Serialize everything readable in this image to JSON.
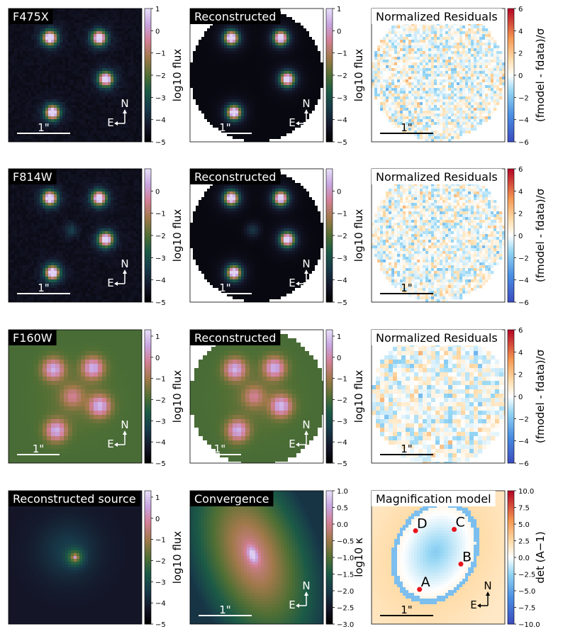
{
  "figure": {
    "panels": [
      {
        "id": "f475x",
        "title": "F475X",
        "kind": "image",
        "colormap": "cubehelix",
        "sources": "quad",
        "noisy": true,
        "style": "optical",
        "scalebar": "1\"",
        "compass": {
          "north": "N",
          "east": "E"
        },
        "circular": false
      },
      {
        "id": "f475x-recon",
        "title": "Reconstructed",
        "kind": "image",
        "colormap": "cubehelix",
        "sources": "quad",
        "noisy": false,
        "style": "optical",
        "scalebar": "1\"",
        "compass": {
          "north": "N",
          "east": "E"
        },
        "circular": true
      },
      {
        "id": "f475x-resid",
        "title": "Normalized Residuals",
        "kind": "residual",
        "colormap": "coolwarm",
        "scalebar": "1\"",
        "pixel": 4,
        "circular": true
      },
      {
        "id": "f814w",
        "title": "F814W",
        "kind": "image",
        "colormap": "cubehelix",
        "sources": "quad",
        "noisy": true,
        "style": "optical",
        "scalebar": "1\"",
        "compass": {
          "north": "N",
          "east": "E"
        },
        "circular": false
      },
      {
        "id": "f814w-recon",
        "title": "Reconstructed",
        "kind": "image",
        "colormap": "cubehelix",
        "sources": "quad",
        "noisy": false,
        "style": "optical",
        "scalebar": "1\"",
        "compass": {
          "north": "N",
          "east": "E"
        },
        "circular": true
      },
      {
        "id": "f814w-resid",
        "title": "Normalized Residuals",
        "kind": "residual",
        "colormap": "coolwarm",
        "scalebar": "1\"",
        "pixel": 4,
        "circular": true
      },
      {
        "id": "f160w",
        "title": "F160W",
        "kind": "image",
        "colormap": "cubehelix",
        "sources": "quad",
        "noisy": false,
        "style": "infrared",
        "scalebar": "1\"",
        "compass": {
          "north": "N",
          "east": "E"
        },
        "circular": false
      },
      {
        "id": "f160w-recon",
        "title": "Reconstructed",
        "kind": "image",
        "colormap": "cubehelix",
        "sources": "quad",
        "noisy": false,
        "style": "infrared",
        "scalebar": "1\"",
        "compass": {
          "north": "N",
          "east": "E"
        },
        "circular": true
      },
      {
        "id": "f160w-resid",
        "title": "Normalized Residuals",
        "kind": "residual",
        "colormap": "coolwarm",
        "scalebar": "1\"",
        "pixel": 6,
        "circular": true
      },
      {
        "id": "source",
        "title": "Reconstructed source",
        "kind": "source",
        "colormap": "cubehelix",
        "scalebar": "",
        "circular": false
      },
      {
        "id": "convergence",
        "title": "Convergence",
        "kind": "convergence",
        "colormap": "cubehelix",
        "scalebar": "1\"",
        "compass": {
          "north": "N",
          "east": "E"
        },
        "circular": false
      },
      {
        "id": "magnification",
        "title": "Magnification model",
        "kind": "magnification",
        "colormap": "coolwarm",
        "scalebar": "1\"",
        "compass": {
          "north": "N",
          "east": "E"
        },
        "circular": false,
        "image_labels": [
          "A",
          "B",
          "C",
          "D"
        ]
      }
    ],
    "colorbars": [
      {
        "id": "cb-f475x",
        "label": "log10 flux",
        "ticks": [
          "1",
          "0",
          "−1",
          "−2",
          "−3",
          "−4",
          "−5"
        ],
        "range": [
          -5,
          1
        ],
        "colormap": "cubehelix"
      },
      {
        "id": "cb-f475x-recon",
        "label": "log10 flux",
        "ticks": [
          "1",
          "0",
          "−1",
          "−2",
          "−3",
          "−4",
          "−5"
        ],
        "range": [
          -5,
          1
        ],
        "colormap": "cubehelix"
      },
      {
        "id": "cb-f475x-resid",
        "label": "(fmodel - fdata)/σ",
        "ticks": [
          "6",
          "4",
          "2",
          "0",
          "−2",
          "−4",
          "−6"
        ],
        "range": [
          -6,
          6
        ],
        "colormap": "coolwarm"
      },
      {
        "id": "cb-f814w",
        "label": "log10 flux",
        "ticks": [
          "0",
          "−1",
          "−2",
          "−3",
          "−4",
          "−5"
        ],
        "range": [
          -5,
          1
        ],
        "colormap": "cubehelix"
      },
      {
        "id": "cb-f814w-recon",
        "label": "log10 flux",
        "ticks": [
          "0",
          "−1",
          "−2",
          "−3",
          "−4",
          "−5"
        ],
        "range": [
          -5,
          1
        ],
        "colormap": "cubehelix"
      },
      {
        "id": "cb-f814w-resid",
        "label": "(fmodel - fdata)/σ",
        "ticks": [
          "6",
          "4",
          "2",
          "0",
          "−2",
          "−4",
          "−6"
        ],
        "range": [
          -6,
          6
        ],
        "colormap": "coolwarm"
      },
      {
        "id": "cb-f160w",
        "label": "log10 flux",
        "ticks": [
          "1",
          "0",
          "−1",
          "−2",
          "−3",
          "−4",
          "−5"
        ],
        "range": [
          -5,
          1.3
        ],
        "colormap": "cubehelix"
      },
      {
        "id": "cb-f160w-recon",
        "label": "log10 flux",
        "ticks": [
          "1",
          "0",
          "−1",
          "−2",
          "−3",
          "−4",
          "−5"
        ],
        "range": [
          -5,
          1.3
        ],
        "colormap": "cubehelix"
      },
      {
        "id": "cb-f160w-resid",
        "label": "(fmodel - fdata)/σ",
        "ticks": [
          "6",
          "4",
          "2",
          "0",
          "−2",
          "−4",
          "−6"
        ],
        "range": [
          -6,
          6
        ],
        "colormap": "coolwarm"
      },
      {
        "id": "cb-source",
        "label": "log10 flux",
        "ticks": [
          "1",
          "0",
          "−1",
          "−2",
          "−3",
          "−4",
          "−5"
        ],
        "range": [
          -5,
          1.3
        ],
        "colormap": "cubehelix"
      },
      {
        "id": "cb-convergence",
        "label": "log10 κ",
        "ticks": [
          "1.0",
          "0.5",
          "0.0",
          "−0.5",
          "−1.0",
          "−1.5",
          "−2.0",
          "−2.5",
          "−3.0"
        ],
        "range": [
          -3,
          1
        ],
        "colormap": "cubehelix"
      },
      {
        "id": "cb-magnification",
        "label": "det (A−1)",
        "ticks": [
          "10.0",
          "7.5",
          "5.0",
          "2.5",
          "0.0",
          "−2.5",
          "−5.0",
          "−7.5",
          "−10.0"
        ],
        "range": [
          -10,
          10
        ],
        "colormap": "coolwarm"
      }
    ]
  },
  "chart_data": [
    {
      "type": "heatmap",
      "title": "F475X",
      "colorbar_label": "log10 flux",
      "clim": [
        -5,
        1
      ],
      "legend": "none",
      "grid": false
    },
    {
      "type": "heatmap",
      "title": "Reconstructed",
      "colorbar_label": "log10 flux",
      "clim": [
        -5,
        1
      ],
      "grid": false
    },
    {
      "type": "heatmap",
      "title": "Normalized Residuals",
      "colorbar_label": "(fmodel - fdata)/σ",
      "clim": [
        -6,
        6
      ],
      "grid": false
    },
    {
      "type": "heatmap",
      "title": "F814W",
      "colorbar_label": "log10 flux",
      "clim": [
        -5,
        1
      ],
      "grid": false
    },
    {
      "type": "heatmap",
      "title": "Reconstructed",
      "colorbar_label": "log10 flux",
      "clim": [
        -5,
        1
      ],
      "grid": false
    },
    {
      "type": "heatmap",
      "title": "Normalized Residuals",
      "colorbar_label": "(fmodel - fdata)/σ",
      "clim": [
        -6,
        6
      ],
      "grid": false
    },
    {
      "type": "heatmap",
      "title": "F160W",
      "colorbar_label": "log10 flux",
      "clim": [
        -5,
        1.3
      ],
      "grid": false
    },
    {
      "type": "heatmap",
      "title": "Reconstructed",
      "colorbar_label": "log10 flux",
      "clim": [
        -5,
        1.3
      ],
      "grid": false
    },
    {
      "type": "heatmap",
      "title": "Normalized Residuals",
      "colorbar_label": "(fmodel - fdata)/σ",
      "clim": [
        -6,
        6
      ],
      "grid": false
    },
    {
      "type": "heatmap",
      "title": "Reconstructed source",
      "colorbar_label": "log10 flux",
      "clim": [
        -5,
        1.3
      ],
      "grid": false
    },
    {
      "type": "heatmap",
      "title": "Convergence",
      "colorbar_label": "log10 κ",
      "clim": [
        -3,
        1
      ],
      "grid": false
    },
    {
      "type": "heatmap",
      "title": "Magnification model",
      "colorbar_label": "det (A−1)",
      "clim": [
        -10,
        10
      ],
      "grid": false,
      "annotations": [
        "A",
        "B",
        "C",
        "D"
      ]
    }
  ]
}
